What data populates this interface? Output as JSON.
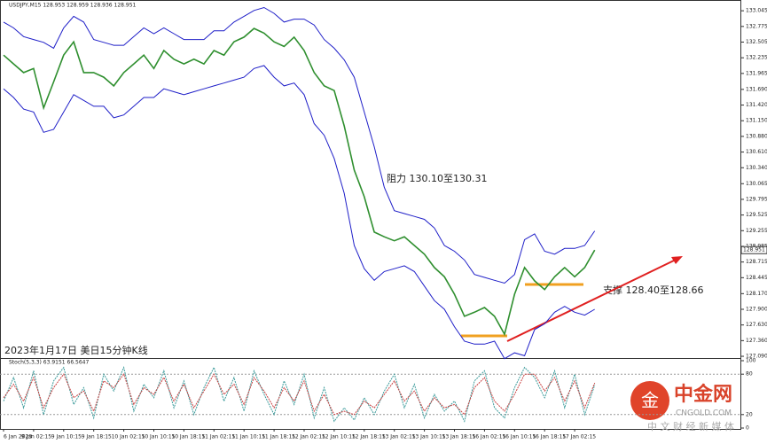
{
  "chart_data": [
    {
      "type": "line",
      "header": "USDJPY,M15 128.953 128.959 128.936 128.951",
      "annotations": [
        "阻力 130.10至130.31",
        "支撑 128.40至128.66",
        "2023年1月17日 美日15分钟K线"
      ],
      "current_price": "128.951",
      "watermark": [
        "中金网",
        "CNGOLD.COM",
        "中 文 财 经 新 媒 体"
      ],
      "categories": [
        "6 Jan 2023",
        null,
        null,
        "9 Jan 02:15",
        null,
        null,
        "9 Jan 10:15",
        null,
        null,
        "9 Jan 18:15",
        null,
        null,
        "10 Jan 02:15",
        null,
        null,
        "10 Jan 10:15",
        null,
        null,
        "10 Jan 18:15",
        null,
        null,
        "11 Jan 02:15",
        null,
        null,
        "11 Jan 10:15",
        null,
        null,
        "11 Jan 18:15",
        null,
        null,
        "12 Jan 02:15",
        null,
        null,
        "12 Jan 10:15",
        null,
        null,
        "12 Jan 18:15",
        null,
        null,
        "13 Jan 02:15",
        null,
        null,
        "13 Jan 10:15",
        null,
        null,
        "13 Jan 18:15",
        null,
        null,
        "16 Jan 02:15",
        null,
        null,
        "16 Jan 10:15",
        null,
        null,
        "16 Jan 18:15",
        null,
        null,
        "17 Jan 02:15",
        null,
        null
      ],
      "series": [
        {
          "color": "#2f8f2f",
          "values": [
            132.28,
            132.13,
            131.98,
            132.05,
            131.37,
            131.82,
            132.28,
            132.51,
            131.98,
            131.98,
            131.9,
            131.75,
            131.98,
            132.13,
            132.28,
            132.05,
            132.36,
            132.21,
            132.13,
            132.21,
            132.13,
            132.36,
            132.28,
            132.51,
            132.59,
            132.74,
            132.66,
            132.51,
            132.43,
            132.59,
            132.36,
            131.98,
            131.75,
            131.67,
            131.06,
            130.3,
            129.84,
            129.23,
            129.15,
            129.08,
            129.15,
            129.0,
            128.85,
            128.62,
            128.46,
            128.16,
            127.78,
            127.85,
            127.93,
            127.78,
            127.47,
            128.16,
            128.62,
            128.39,
            128.24,
            128.46,
            128.62,
            128.46,
            128.62,
            128.92
          ]
        },
        {
          "color": "#1f1fc8",
          "values": [
            132.85,
            132.75,
            132.6,
            132.55,
            132.5,
            132.4,
            132.75,
            132.95,
            132.85,
            132.55,
            132.5,
            132.45,
            132.45,
            132.6,
            132.75,
            132.65,
            132.75,
            132.65,
            132.55,
            132.55,
            132.55,
            132.7,
            132.7,
            132.85,
            132.95,
            133.05,
            133.1,
            133.0,
            132.85,
            132.9,
            132.9,
            132.8,
            132.55,
            132.4,
            132.2,
            131.9,
            131.3,
            130.7,
            130.0,
            129.6,
            129.55,
            129.5,
            129.45,
            129.3,
            129.0,
            128.9,
            128.75,
            128.5,
            128.45,
            128.4,
            128.35,
            128.5,
            129.1,
            129.2,
            128.9,
            128.85,
            128.95,
            128.95,
            129.0,
            129.25
          ]
        },
        {
          "color": "#1f1fc8",
          "values": [
            131.7,
            131.55,
            131.35,
            131.3,
            130.95,
            131.0,
            131.3,
            131.6,
            131.5,
            131.4,
            131.4,
            131.2,
            131.25,
            131.4,
            131.55,
            131.55,
            131.7,
            131.65,
            131.6,
            131.65,
            131.7,
            131.75,
            131.8,
            131.85,
            131.9,
            132.05,
            132.1,
            131.9,
            131.75,
            131.8,
            131.6,
            131.1,
            130.9,
            130.5,
            129.9,
            129.0,
            128.6,
            128.4,
            128.55,
            128.6,
            128.65,
            128.55,
            128.3,
            128.05,
            127.9,
            127.6,
            127.35,
            127.3,
            127.3,
            127.35,
            127.05,
            127.15,
            127.1,
            127.55,
            127.65,
            127.85,
            127.95,
            127.85,
            127.8,
            127.9
          ]
        }
      ],
      "ylim": [
        127.06,
        133.2
      ],
      "yticks": [
        133.045,
        132.775,
        132.505,
        132.235,
        131.965,
        {
          "value": 131.69,
          "label": "131.690"
        },
        {
          "value": 131.42,
          "label": "131.420"
        },
        {
          "value": 131.15,
          "label": "131.150"
        },
        {
          "value": 130.88,
          "label": "130.880"
        },
        {
          "value": 130.61,
          "label": "130.610"
        },
        {
          "value": 130.34,
          "label": "130.340"
        },
        130.065,
        129.795,
        129.525,
        129.255,
        128.985,
        128.715,
        128.445,
        {
          "value": 128.17,
          "label": "128.170"
        },
        {
          "value": 127.9,
          "label": "127.900"
        },
        {
          "value": 127.63,
          "label": "127.630"
        },
        {
          "value": 127.36,
          "label": "127.360"
        },
        {
          "value": 127.09,
          "label": "127.090"
        }
      ]
    },
    {
      "type": "line",
      "title": "Stoch(5,3,3) 63.9151 66.5647",
      "series": [
        {
          "color": "#3a9a9a",
          "values": [
            40,
            75,
            30,
            85,
            20,
            70,
            90,
            35,
            60,
            15,
            80,
            55,
            90,
            25,
            65,
            45,
            85,
            30,
            70,
            20,
            60,
            90,
            40,
            75,
            25,
            85,
            50,
            20,
            70,
            35,
            80,
            15,
            60,
            10,
            30,
            12,
            45,
            20,
            55,
            80,
            30,
            65,
            15,
            50,
            25,
            40,
            10,
            70,
            85,
            30,
            15,
            60,
            90,
            75,
            45,
            85,
            30,
            80,
            20,
            64
          ]
        },
        {
          "color": "#c84040",
          "values": [
            45,
            65,
            40,
            75,
            30,
            60,
            80,
            45,
            55,
            25,
            70,
            60,
            80,
            35,
            60,
            50,
            75,
            40,
            65,
            30,
            55,
            80,
            50,
            65,
            35,
            75,
            55,
            30,
            60,
            40,
            70,
            25,
            50,
            20,
            25,
            20,
            40,
            30,
            50,
            70,
            40,
            55,
            25,
            45,
            30,
            35,
            20,
            60,
            75,
            40,
            25,
            50,
            80,
            80,
            55,
            75,
            40,
            70,
            30,
            67
          ]
        }
      ],
      "ylim": [
        0,
        100
      ],
      "yticks": [
        0,
        20,
        80,
        100
      ]
    }
  ]
}
